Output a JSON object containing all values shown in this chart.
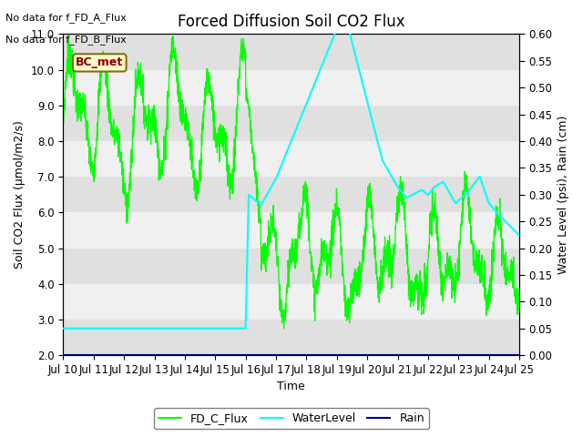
{
  "title": "Forced Diffusion Soil CO2 Flux",
  "xlabel": "Time",
  "ylabel_left": "Soil CO2 Flux (μmol/m2/s)",
  "ylabel_right": "Water Level (psi), Rain (cm)",
  "no_data_text": [
    "No data for f_FD_A_Flux",
    "No data for f_FD_B_Flux"
  ],
  "bc_met_label": "BC_met",
  "ylim_left": [
    2.0,
    11.0
  ],
  "ylim_right": [
    0.0,
    0.6
  ],
  "yticks_left": [
    2.0,
    3.0,
    4.0,
    5.0,
    6.0,
    7.0,
    8.0,
    9.0,
    10.0,
    11.0
  ],
  "yticks_right": [
    0.0,
    0.05,
    0.1,
    0.15,
    0.2,
    0.25,
    0.3,
    0.35,
    0.4,
    0.45,
    0.5,
    0.55,
    0.6
  ],
  "xtick_labels": [
    "Jul 10",
    "Jul 11",
    "Jul 12",
    "Jul 13",
    "Jul 14",
    "Jul 15",
    "Jul 16",
    "Jul 17",
    "Jul 18",
    "Jul 19",
    "Jul 20",
    "Jul 21",
    "Jul 22",
    "Jul 23",
    "Jul 24",
    "Jul 25"
  ],
  "legend_entries": [
    {
      "label": "FD_C_Flux",
      "color": "#00ff00",
      "linestyle": "-"
    },
    {
      "label": "WaterLevel",
      "color": "cyan",
      "linestyle": "-"
    },
    {
      "label": "Rain",
      "color": "navy",
      "linestyle": "-"
    }
  ],
  "band_colors": [
    "#e0e0e0",
    "#f0f0f0"
  ],
  "flux_color": "#00ff00",
  "water_color": "cyan",
  "rain_color": "navy",
  "background_color": "#ffffff",
  "title_fontsize": 12,
  "axis_fontsize": 9,
  "tick_fontsize": 8.5
}
